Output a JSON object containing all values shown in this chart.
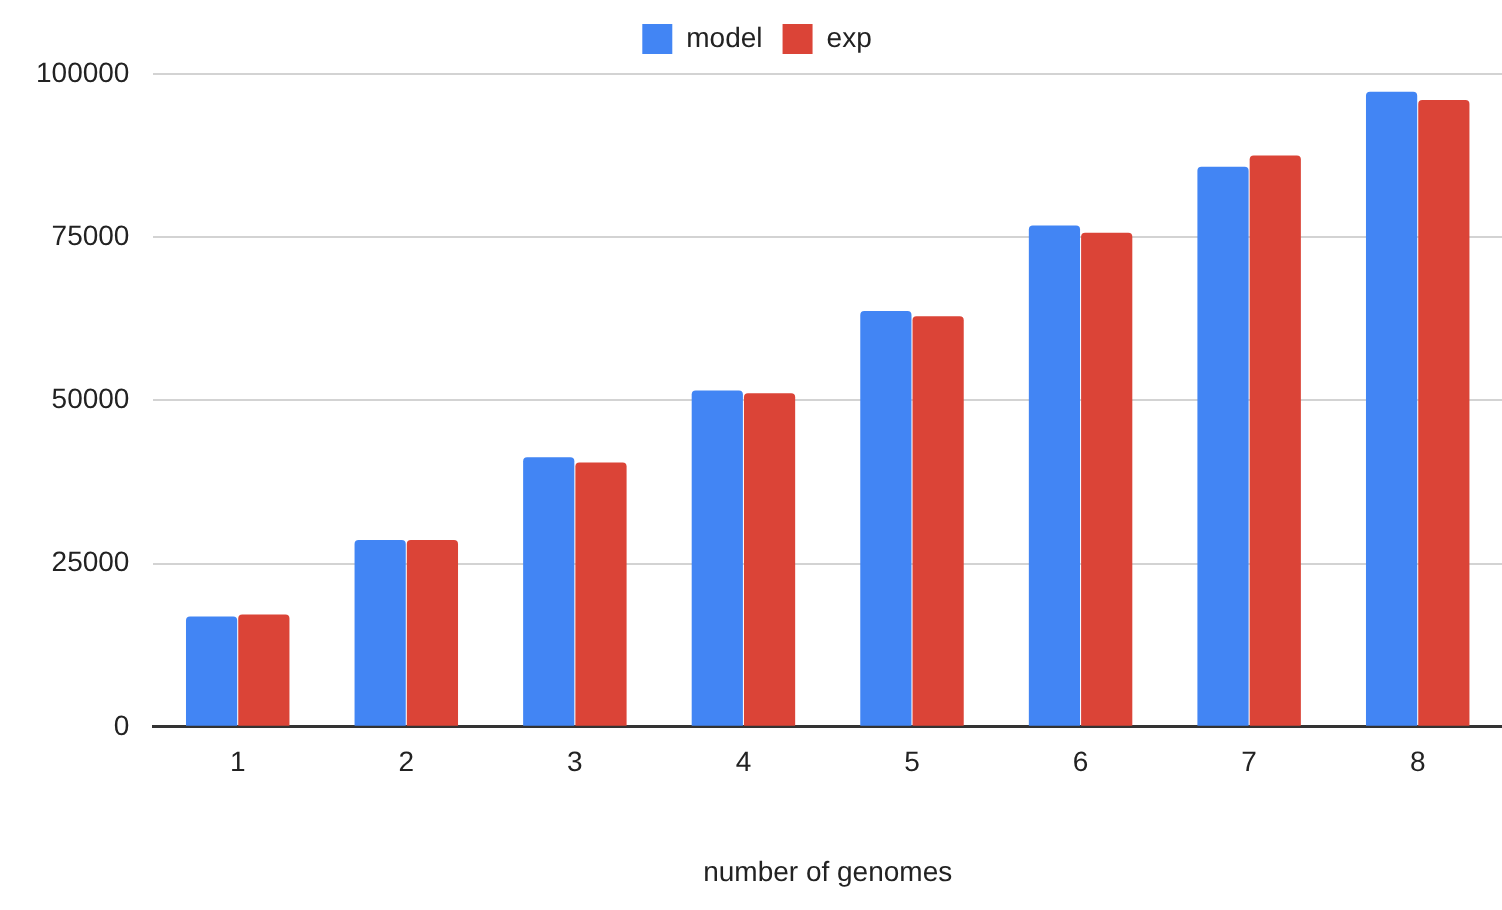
{
  "chart_data": {
    "type": "bar",
    "xlabel": "number of genomes",
    "categories": [
      "1",
      "2",
      "3",
      "4",
      "5",
      "6",
      "7",
      "8"
    ],
    "series": [
      {
        "name": "model",
        "color": "#4285f4",
        "values": [
          16900,
          28600,
          41300,
          51500,
          63700,
          76800,
          85800,
          97300
        ]
      },
      {
        "name": "exp",
        "color": "#db4437",
        "values": [
          17200,
          28600,
          40500,
          51100,
          62900,
          75700,
          87500,
          96000
        ]
      }
    ],
    "ylim": [
      0,
      100000
    ],
    "yticks": [
      0,
      25000,
      50000,
      75000,
      100000
    ],
    "grid": "y",
    "legend": "top"
  }
}
